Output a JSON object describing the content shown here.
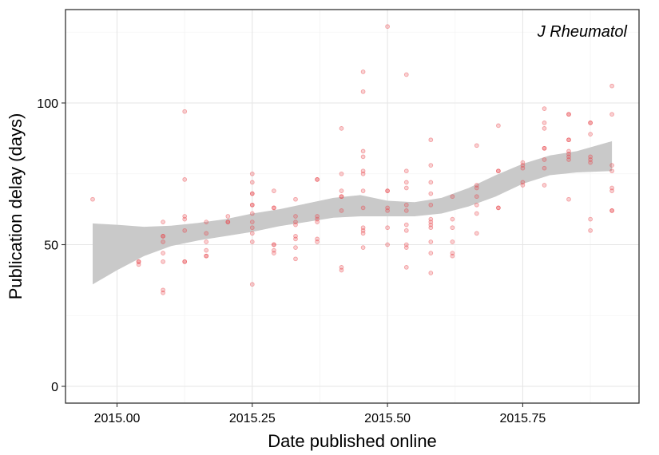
{
  "chart_data": {
    "type": "scatter",
    "title": "",
    "annotation": "J Rheumatol",
    "xlabel": "Date published online",
    "ylabel": "Publication delay (days)",
    "xlim": [
      2014.955,
      2015.96
    ],
    "ylim": [
      -6,
      133
    ],
    "xticks": [
      2015.0,
      2015.25,
      2015.5,
      2015.75
    ],
    "xtick_labels": [
      "2015.00",
      "2015.25",
      "2015.50",
      "2015.75"
    ],
    "yticks": [
      0,
      50,
      100
    ],
    "ytick_labels": [
      "0",
      "50",
      "100"
    ],
    "grid": true,
    "point_color": "#e8454a",
    "band_color": "#c9c9c9",
    "points": [
      {
        "x": 2014.955,
        "y": 66
      },
      {
        "x": 2015.04,
        "y": 44
      },
      {
        "x": 2015.04,
        "y": 43
      },
      {
        "x": 2015.04,
        "y": 44
      },
      {
        "x": 2015.085,
        "y": 58
      },
      {
        "x": 2015.085,
        "y": 53
      },
      {
        "x": 2015.085,
        "y": 53
      },
      {
        "x": 2015.085,
        "y": 51
      },
      {
        "x": 2015.085,
        "y": 47
      },
      {
        "x": 2015.085,
        "y": 44
      },
      {
        "x": 2015.085,
        "y": 34
      },
      {
        "x": 2015.085,
        "y": 33
      },
      {
        "x": 2015.125,
        "y": 97
      },
      {
        "x": 2015.125,
        "y": 73
      },
      {
        "x": 2015.125,
        "y": 60
      },
      {
        "x": 2015.125,
        "y": 59
      },
      {
        "x": 2015.125,
        "y": 55
      },
      {
        "x": 2015.125,
        "y": 44
      },
      {
        "x": 2015.125,
        "y": 44
      },
      {
        "x": 2015.165,
        "y": 58
      },
      {
        "x": 2015.165,
        "y": 54
      },
      {
        "x": 2015.165,
        "y": 51
      },
      {
        "x": 2015.165,
        "y": 48
      },
      {
        "x": 2015.165,
        "y": 46
      },
      {
        "x": 2015.165,
        "y": 46
      },
      {
        "x": 2015.205,
        "y": 60
      },
      {
        "x": 2015.205,
        "y": 58
      },
      {
        "x": 2015.205,
        "y": 58
      },
      {
        "x": 2015.25,
        "y": 75
      },
      {
        "x": 2015.25,
        "y": 72
      },
      {
        "x": 2015.25,
        "y": 68
      },
      {
        "x": 2015.25,
        "y": 68
      },
      {
        "x": 2015.25,
        "y": 64
      },
      {
        "x": 2015.25,
        "y": 64
      },
      {
        "x": 2015.25,
        "y": 61
      },
      {
        "x": 2015.25,
        "y": 58
      },
      {
        "x": 2015.25,
        "y": 56
      },
      {
        "x": 2015.25,
        "y": 54
      },
      {
        "x": 2015.25,
        "y": 51
      },
      {
        "x": 2015.25,
        "y": 36
      },
      {
        "x": 2015.29,
        "y": 69
      },
      {
        "x": 2015.29,
        "y": 63
      },
      {
        "x": 2015.29,
        "y": 63
      },
      {
        "x": 2015.29,
        "y": 50
      },
      {
        "x": 2015.29,
        "y": 50
      },
      {
        "x": 2015.29,
        "y": 48
      },
      {
        "x": 2015.29,
        "y": 47
      },
      {
        "x": 2015.33,
        "y": 66
      },
      {
        "x": 2015.33,
        "y": 60
      },
      {
        "x": 2015.33,
        "y": 58
      },
      {
        "x": 2015.33,
        "y": 57
      },
      {
        "x": 2015.33,
        "y": 53
      },
      {
        "x": 2015.33,
        "y": 52
      },
      {
        "x": 2015.33,
        "y": 49
      },
      {
        "x": 2015.33,
        "y": 45
      },
      {
        "x": 2015.37,
        "y": 73
      },
      {
        "x": 2015.37,
        "y": 73
      },
      {
        "x": 2015.37,
        "y": 60
      },
      {
        "x": 2015.37,
        "y": 59
      },
      {
        "x": 2015.37,
        "y": 58
      },
      {
        "x": 2015.37,
        "y": 52
      },
      {
        "x": 2015.37,
        "y": 51
      },
      {
        "x": 2015.415,
        "y": 91
      },
      {
        "x": 2015.415,
        "y": 75
      },
      {
        "x": 2015.415,
        "y": 69
      },
      {
        "x": 2015.415,
        "y": 67
      },
      {
        "x": 2015.415,
        "y": 67
      },
      {
        "x": 2015.415,
        "y": 62
      },
      {
        "x": 2015.415,
        "y": 42
      },
      {
        "x": 2015.415,
        "y": 41
      },
      {
        "x": 2015.455,
        "y": 111
      },
      {
        "x": 2015.455,
        "y": 104
      },
      {
        "x": 2015.455,
        "y": 83
      },
      {
        "x": 2015.455,
        "y": 81
      },
      {
        "x": 2015.455,
        "y": 76
      },
      {
        "x": 2015.455,
        "y": 75
      },
      {
        "x": 2015.455,
        "y": 69
      },
      {
        "x": 2015.455,
        "y": 63
      },
      {
        "x": 2015.455,
        "y": 56
      },
      {
        "x": 2015.455,
        "y": 55
      },
      {
        "x": 2015.455,
        "y": 54
      },
      {
        "x": 2015.455,
        "y": 49
      },
      {
        "x": 2015.5,
        "y": 127
      },
      {
        "x": 2015.5,
        "y": 69
      },
      {
        "x": 2015.5,
        "y": 69
      },
      {
        "x": 2015.5,
        "y": 63
      },
      {
        "x": 2015.5,
        "y": 62
      },
      {
        "x": 2015.5,
        "y": 56
      },
      {
        "x": 2015.5,
        "y": 50
      },
      {
        "x": 2015.535,
        "y": 110
      },
      {
        "x": 2015.535,
        "y": 76
      },
      {
        "x": 2015.535,
        "y": 72
      },
      {
        "x": 2015.535,
        "y": 70
      },
      {
        "x": 2015.535,
        "y": 64
      },
      {
        "x": 2015.535,
        "y": 62
      },
      {
        "x": 2015.535,
        "y": 57
      },
      {
        "x": 2015.535,
        "y": 55
      },
      {
        "x": 2015.535,
        "y": 50
      },
      {
        "x": 2015.535,
        "y": 49
      },
      {
        "x": 2015.535,
        "y": 42
      },
      {
        "x": 2015.58,
        "y": 87
      },
      {
        "x": 2015.58,
        "y": 78
      },
      {
        "x": 2015.58,
        "y": 72
      },
      {
        "x": 2015.58,
        "y": 68
      },
      {
        "x": 2015.58,
        "y": 64
      },
      {
        "x": 2015.58,
        "y": 59
      },
      {
        "x": 2015.58,
        "y": 58
      },
      {
        "x": 2015.58,
        "y": 57
      },
      {
        "x": 2015.58,
        "y": 56
      },
      {
        "x": 2015.58,
        "y": 51
      },
      {
        "x": 2015.58,
        "y": 47
      },
      {
        "x": 2015.58,
        "y": 40
      },
      {
        "x": 2015.62,
        "y": 67
      },
      {
        "x": 2015.62,
        "y": 59
      },
      {
        "x": 2015.62,
        "y": 56
      },
      {
        "x": 2015.62,
        "y": 51
      },
      {
        "x": 2015.62,
        "y": 47
      },
      {
        "x": 2015.62,
        "y": 46
      },
      {
        "x": 2015.665,
        "y": 85
      },
      {
        "x": 2015.665,
        "y": 71
      },
      {
        "x": 2015.665,
        "y": 70
      },
      {
        "x": 2015.665,
        "y": 67
      },
      {
        "x": 2015.665,
        "y": 64
      },
      {
        "x": 2015.665,
        "y": 61
      },
      {
        "x": 2015.665,
        "y": 54
      },
      {
        "x": 2015.705,
        "y": 92
      },
      {
        "x": 2015.705,
        "y": 76
      },
      {
        "x": 2015.705,
        "y": 76
      },
      {
        "x": 2015.705,
        "y": 63
      },
      {
        "x": 2015.705,
        "y": 63
      },
      {
        "x": 2015.75,
        "y": 79
      },
      {
        "x": 2015.75,
        "y": 78
      },
      {
        "x": 2015.75,
        "y": 77
      },
      {
        "x": 2015.75,
        "y": 72
      },
      {
        "x": 2015.75,
        "y": 71
      },
      {
        "x": 2015.79,
        "y": 98
      },
      {
        "x": 2015.79,
        "y": 93
      },
      {
        "x": 2015.79,
        "y": 91
      },
      {
        "x": 2015.79,
        "y": 84
      },
      {
        "x": 2015.79,
        "y": 84
      },
      {
        "x": 2015.79,
        "y": 80
      },
      {
        "x": 2015.79,
        "y": 77
      },
      {
        "x": 2015.79,
        "y": 71
      },
      {
        "x": 2015.835,
        "y": 96
      },
      {
        "x": 2015.835,
        "y": 96
      },
      {
        "x": 2015.835,
        "y": 87
      },
      {
        "x": 2015.835,
        "y": 87
      },
      {
        "x": 2015.835,
        "y": 83
      },
      {
        "x": 2015.835,
        "y": 82
      },
      {
        "x": 2015.835,
        "y": 81
      },
      {
        "x": 2015.835,
        "y": 80
      },
      {
        "x": 2015.835,
        "y": 66
      },
      {
        "x": 2015.875,
        "y": 93
      },
      {
        "x": 2015.875,
        "y": 93
      },
      {
        "x": 2015.875,
        "y": 89
      },
      {
        "x": 2015.875,
        "y": 81
      },
      {
        "x": 2015.875,
        "y": 80
      },
      {
        "x": 2015.875,
        "y": 79
      },
      {
        "x": 2015.875,
        "y": 59
      },
      {
        "x": 2015.875,
        "y": 55
      },
      {
        "x": 2015.915,
        "y": 106
      },
      {
        "x": 2015.915,
        "y": 96
      },
      {
        "x": 2015.915,
        "y": 78
      },
      {
        "x": 2015.915,
        "y": 76
      },
      {
        "x": 2015.915,
        "y": 70
      },
      {
        "x": 2015.915,
        "y": 69
      },
      {
        "x": 2015.915,
        "y": 62
      },
      {
        "x": 2015.915,
        "y": 62
      }
    ],
    "smooth": {
      "x": [
        2014.955,
        2015.0,
        2015.05,
        2015.1,
        2015.15,
        2015.2,
        2015.25,
        2015.3,
        2015.35,
        2015.4,
        2015.45,
        2015.5,
        2015.55,
        2015.6,
        2015.65,
        2015.7,
        2015.75,
        2015.8,
        2015.85,
        2015.915
      ],
      "lower": [
        36.0,
        41.0,
        46.0,
        49.5,
        51.5,
        53.0,
        54.5,
        56.5,
        58.0,
        59.5,
        60.0,
        60.0,
        60.0,
        61.0,
        63.5,
        67.0,
        71.5,
        74.5,
        75.5,
        76.0
      ],
      "upper": [
        57.5,
        57.0,
        56.3,
        56.7,
        57.7,
        59.0,
        61.0,
        62.5,
        64.5,
        66.5,
        67.5,
        65.5,
        65.0,
        66.5,
        70.0,
        74.5,
        78.5,
        81.5,
        83.0,
        86.5
      ]
    }
  }
}
